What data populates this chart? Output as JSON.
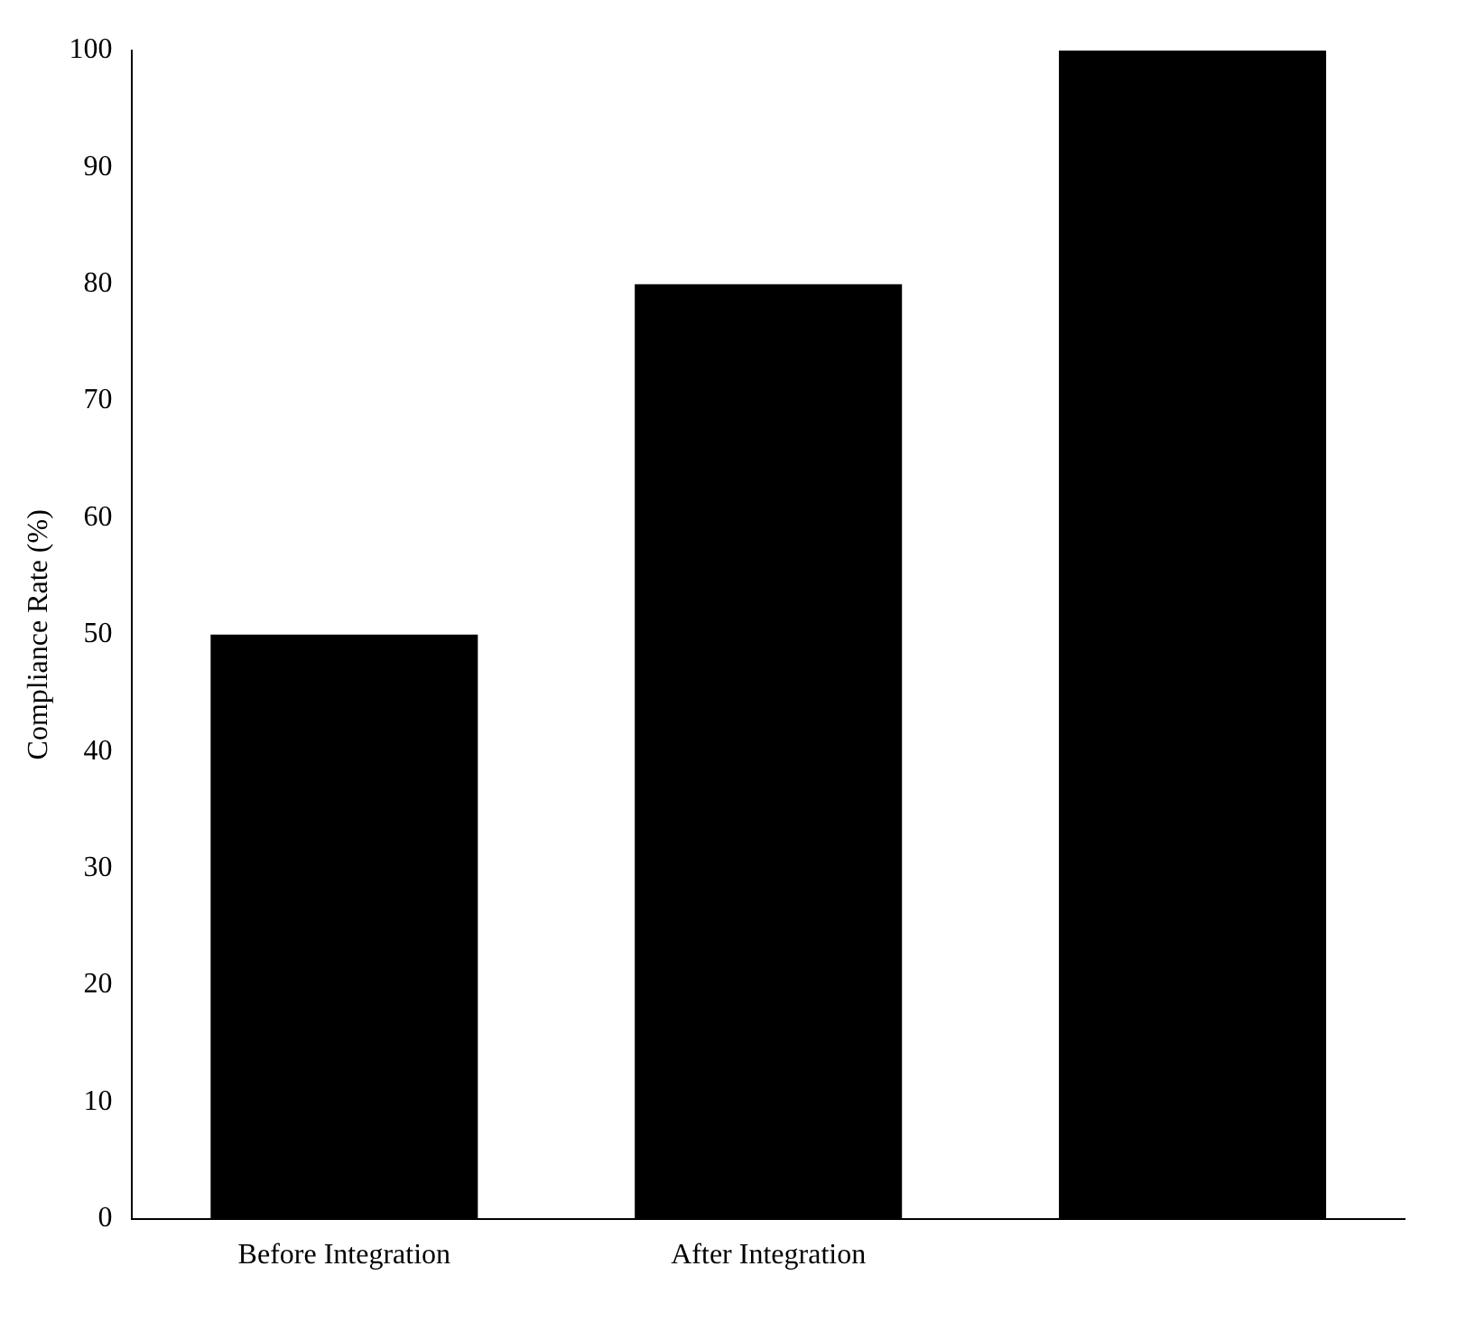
{
  "chart_data": {
    "type": "bar",
    "ylabel": "Compliance Rate (%)",
    "categories": [
      "Before Integration",
      "After Integration",
      null
    ],
    "values": [
      50,
      80,
      100
    ],
    "color": "#000000",
    "ylim": [
      0,
      100
    ],
    "yticks": [
      0,
      10,
      20,
      30,
      40,
      50,
      60,
      70,
      80,
      90,
      100
    ],
    "grid": false,
    "legend": false
  }
}
